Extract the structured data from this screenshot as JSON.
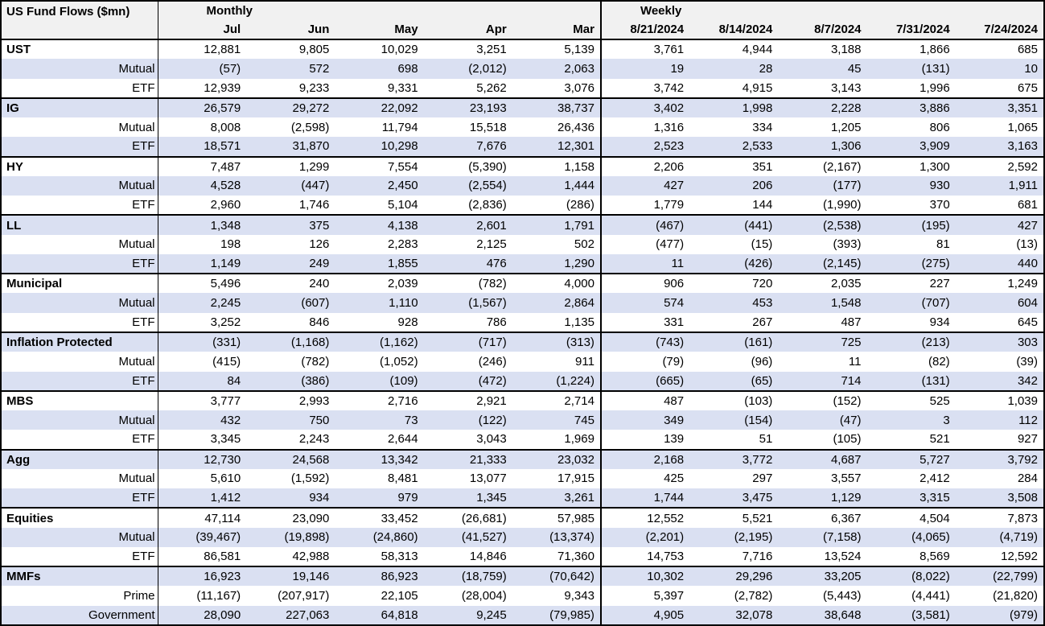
{
  "header": {
    "title": "US Fund Flows ($mn)",
    "monthly_label": "Monthly",
    "weekly_label": "Weekly"
  },
  "colors": {
    "stripe": "#dae0f2",
    "header_bg": "#f1f1f1",
    "table_border": "#000000"
  },
  "chart_data": {
    "type": "table",
    "title": "US Fund Flows ($mn)",
    "units": "$mn",
    "negative_format": "parentheses",
    "column_groups": [
      {
        "label": "Monthly",
        "columns": [
          "Jul",
          "Jun",
          "May",
          "Apr",
          "Mar"
        ]
      },
      {
        "label": "Weekly",
        "columns": [
          "8/21/2024",
          "8/14/2024",
          "8/7/2024",
          "7/31/2024",
          "7/24/2024"
        ]
      }
    ],
    "row_groups": [
      {
        "category": "UST",
        "rows": [
          {
            "label": "UST",
            "is_category": true,
            "monthly": [
              "12,881",
              "9,805",
              "10,029",
              "3,251",
              "5,139"
            ],
            "weekly": [
              "3,761",
              "4,944",
              "3,188",
              "1,866",
              "685"
            ]
          },
          {
            "label": "Mutual",
            "is_category": false,
            "monthly": [
              "(57)",
              "572",
              "698",
              "(2,012)",
              "2,063"
            ],
            "weekly": [
              "19",
              "28",
              "45",
              "(131)",
              "10"
            ]
          },
          {
            "label": "ETF",
            "is_category": false,
            "monthly": [
              "12,939",
              "9,233",
              "9,331",
              "5,262",
              "3,076"
            ],
            "weekly": [
              "3,742",
              "4,915",
              "3,143",
              "1,996",
              "675"
            ]
          }
        ]
      },
      {
        "category": "IG",
        "rows": [
          {
            "label": "IG",
            "is_category": true,
            "monthly": [
              "26,579",
              "29,272",
              "22,092",
              "23,193",
              "38,737"
            ],
            "weekly": [
              "3,402",
              "1,998",
              "2,228",
              "3,886",
              "3,351"
            ]
          },
          {
            "label": "Mutual",
            "is_category": false,
            "monthly": [
              "8,008",
              "(2,598)",
              "11,794",
              "15,518",
              "26,436"
            ],
            "weekly": [
              "1,316",
              "334",
              "1,205",
              "806",
              "1,065"
            ]
          },
          {
            "label": "ETF",
            "is_category": false,
            "monthly": [
              "18,571",
              "31,870",
              "10,298",
              "7,676",
              "12,301"
            ],
            "weekly": [
              "2,523",
              "2,533",
              "1,306",
              "3,909",
              "3,163"
            ]
          }
        ]
      },
      {
        "category": "HY",
        "rows": [
          {
            "label": "HY",
            "is_category": true,
            "monthly": [
              "7,487",
              "1,299",
              "7,554",
              "(5,390)",
              "1,158"
            ],
            "weekly": [
              "2,206",
              "351",
              "(2,167)",
              "1,300",
              "2,592"
            ]
          },
          {
            "label": "Mutual",
            "is_category": false,
            "monthly": [
              "4,528",
              "(447)",
              "2,450",
              "(2,554)",
              "1,444"
            ],
            "weekly": [
              "427",
              "206",
              "(177)",
              "930",
              "1,911"
            ]
          },
          {
            "label": "ETF",
            "is_category": false,
            "monthly": [
              "2,960",
              "1,746",
              "5,104",
              "(2,836)",
              "(286)"
            ],
            "weekly": [
              "1,779",
              "144",
              "(1,990)",
              "370",
              "681"
            ]
          }
        ]
      },
      {
        "category": "LL",
        "rows": [
          {
            "label": "LL",
            "is_category": true,
            "monthly": [
              "1,348",
              "375",
              "4,138",
              "2,601",
              "1,791"
            ],
            "weekly": [
              "(467)",
              "(441)",
              "(2,538)",
              "(195)",
              "427"
            ]
          },
          {
            "label": "Mutual",
            "is_category": false,
            "monthly": [
              "198",
              "126",
              "2,283",
              "2,125",
              "502"
            ],
            "weekly": [
              "(477)",
              "(15)",
              "(393)",
              "81",
              "(13)"
            ]
          },
          {
            "label": "ETF",
            "is_category": false,
            "monthly": [
              "1,149",
              "249",
              "1,855",
              "476",
              "1,290"
            ],
            "weekly": [
              "11",
              "(426)",
              "(2,145)",
              "(275)",
              "440"
            ]
          }
        ]
      },
      {
        "category": "Municipal",
        "rows": [
          {
            "label": "Municipal",
            "is_category": true,
            "monthly": [
              "5,496",
              "240",
              "2,039",
              "(782)",
              "4,000"
            ],
            "weekly": [
              "906",
              "720",
              "2,035",
              "227",
              "1,249"
            ]
          },
          {
            "label": "Mutual",
            "is_category": false,
            "monthly": [
              "2,245",
              "(607)",
              "1,110",
              "(1,567)",
              "2,864"
            ],
            "weekly": [
              "574",
              "453",
              "1,548",
              "(707)",
              "604"
            ]
          },
          {
            "label": "ETF",
            "is_category": false,
            "monthly": [
              "3,252",
              "846",
              "928",
              "786",
              "1,135"
            ],
            "weekly": [
              "331",
              "267",
              "487",
              "934",
              "645"
            ]
          }
        ]
      },
      {
        "category": "Inflation Protected",
        "rows": [
          {
            "label": "Inflation Protected",
            "is_category": true,
            "monthly": [
              "(331)",
              "(1,168)",
              "(1,162)",
              "(717)",
              "(313)"
            ],
            "weekly": [
              "(743)",
              "(161)",
              "725",
              "(213)",
              "303"
            ]
          },
          {
            "label": "Mutual",
            "is_category": false,
            "monthly": [
              "(415)",
              "(782)",
              "(1,052)",
              "(246)",
              "911"
            ],
            "weekly": [
              "(79)",
              "(96)",
              "11",
              "(82)",
              "(39)"
            ]
          },
          {
            "label": "ETF",
            "is_category": false,
            "monthly": [
              "84",
              "(386)",
              "(109)",
              "(472)",
              "(1,224)"
            ],
            "weekly": [
              "(665)",
              "(65)",
              "714",
              "(131)",
              "342"
            ]
          }
        ]
      },
      {
        "category": "MBS",
        "rows": [
          {
            "label": "MBS",
            "is_category": true,
            "monthly": [
              "3,777",
              "2,993",
              "2,716",
              "2,921",
              "2,714"
            ],
            "weekly": [
              "487",
              "(103)",
              "(152)",
              "525",
              "1,039"
            ]
          },
          {
            "label": "Mutual",
            "is_category": false,
            "monthly": [
              "432",
              "750",
              "73",
              "(122)",
              "745"
            ],
            "weekly": [
              "349",
              "(154)",
              "(47)",
              "3",
              "112"
            ]
          },
          {
            "label": "ETF",
            "is_category": false,
            "monthly": [
              "3,345",
              "2,243",
              "2,644",
              "3,043",
              "1,969"
            ],
            "weekly": [
              "139",
              "51",
              "(105)",
              "521",
              "927"
            ]
          }
        ]
      },
      {
        "category": "Agg",
        "rows": [
          {
            "label": "Agg",
            "is_category": true,
            "monthly": [
              "12,730",
              "24,568",
              "13,342",
              "21,333",
              "23,032"
            ],
            "weekly": [
              "2,168",
              "3,772",
              "4,687",
              "5,727",
              "3,792"
            ]
          },
          {
            "label": "Mutual",
            "is_category": false,
            "monthly": [
              "5,610",
              "(1,592)",
              "8,481",
              "13,077",
              "17,915"
            ],
            "weekly": [
              "425",
              "297",
              "3,557",
              "2,412",
              "284"
            ]
          },
          {
            "label": "ETF",
            "is_category": false,
            "monthly": [
              "1,412",
              "934",
              "979",
              "1,345",
              "3,261"
            ],
            "weekly": [
              "1,744",
              "3,475",
              "1,129",
              "3,315",
              "3,508"
            ]
          }
        ]
      },
      {
        "category": "Equities",
        "rows": [
          {
            "label": "Equities",
            "is_category": true,
            "monthly": [
              "47,114",
              "23,090",
              "33,452",
              "(26,681)",
              "57,985"
            ],
            "weekly": [
              "12,552",
              "5,521",
              "6,367",
              "4,504",
              "7,873"
            ]
          },
          {
            "label": "Mutual",
            "is_category": false,
            "monthly": [
              "(39,467)",
              "(19,898)",
              "(24,860)",
              "(41,527)",
              "(13,374)"
            ],
            "weekly": [
              "(2,201)",
              "(2,195)",
              "(7,158)",
              "(4,065)",
              "(4,719)"
            ]
          },
          {
            "label": "ETF",
            "is_category": false,
            "monthly": [
              "86,581",
              "42,988",
              "58,313",
              "14,846",
              "71,360"
            ],
            "weekly": [
              "14,753",
              "7,716",
              "13,524",
              "8,569",
              "12,592"
            ]
          }
        ]
      },
      {
        "category": "MMFs",
        "rows": [
          {
            "label": "MMFs",
            "is_category": true,
            "monthly": [
              "16,923",
              "19,146",
              "86,923",
              "(18,759)",
              "(70,642)"
            ],
            "weekly": [
              "10,302",
              "29,296",
              "33,205",
              "(8,022)",
              "(22,799)"
            ]
          },
          {
            "label": "Prime",
            "is_category": false,
            "monthly": [
              "(11,167)",
              "(207,917)",
              "22,105",
              "(28,004)",
              "9,343"
            ],
            "weekly": [
              "5,397",
              "(2,782)",
              "(5,443)",
              "(4,441)",
              "(21,820)"
            ]
          },
          {
            "label": "Government",
            "is_category": false,
            "monthly": [
              "28,090",
              "227,063",
              "64,818",
              "9,245",
              "(79,985)"
            ],
            "weekly": [
              "4,905",
              "32,078",
              "38,648",
              "(3,581)",
              "(979)"
            ]
          }
        ]
      }
    ]
  }
}
